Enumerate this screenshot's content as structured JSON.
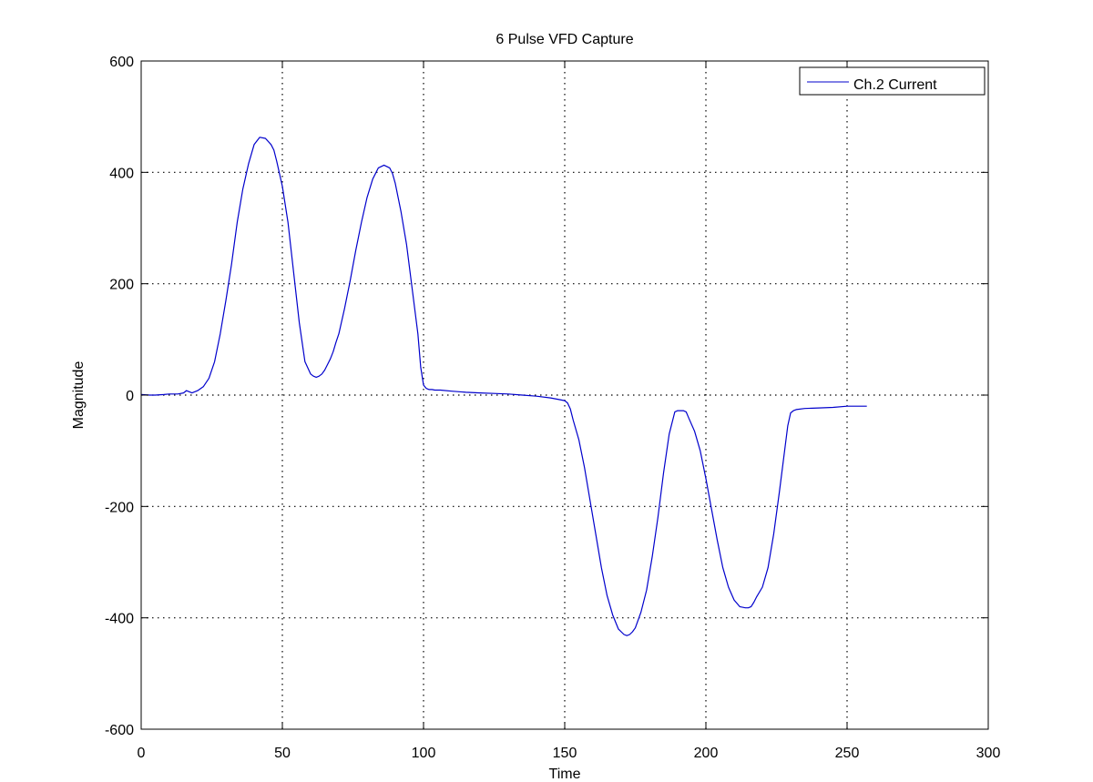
{
  "chart_data": {
    "type": "line",
    "title": "6 Pulse VFD Capture",
    "xlabel": "Time",
    "ylabel": "Magnitude",
    "xlim": [
      0,
      300
    ],
    "ylim": [
      -600,
      600
    ],
    "xticks": [
      0,
      50,
      100,
      150,
      200,
      250,
      300
    ],
    "yticks": [
      -600,
      -400,
      -200,
      0,
      200,
      400,
      600
    ],
    "grid": true,
    "legend_position": "top-right",
    "series": [
      {
        "name": "Ch.2 Current",
        "color": "#0000cc",
        "x": [
          0,
          3,
          5,
          8,
          10,
          13,
          15,
          16,
          17,
          18,
          20,
          22,
          24,
          26,
          28,
          30,
          32,
          34,
          36,
          38,
          40,
          42,
          44,
          46,
          47,
          48,
          50,
          52,
          54,
          56,
          58,
          60,
          61,
          62,
          63,
          64,
          65,
          66,
          67,
          68,
          69,
          70,
          72,
          74,
          76,
          78,
          80,
          82,
          84,
          86,
          88,
          89,
          90,
          92,
          94,
          96,
          98,
          99,
          100,
          101,
          102,
          103,
          104,
          105,
          106,
          110,
          115,
          120,
          125,
          130,
          135,
          140,
          145,
          148,
          150,
          151,
          152,
          153,
          155,
          157,
          159,
          161,
          163,
          165,
          167,
          169,
          171,
          172,
          173,
          174,
          175,
          177,
          179,
          181,
          183,
          185,
          187,
          189,
          190,
          191,
          192,
          193,
          194,
          196,
          198,
          200,
          202,
          204,
          206,
          208,
          210,
          212,
          214,
          215,
          216,
          217,
          218,
          220,
          222,
          224,
          226,
          228,
          229,
          230,
          231,
          232,
          235,
          240,
          245,
          250,
          257
        ],
        "y": [
          1,
          0,
          0,
          1,
          2,
          2,
          4,
          8,
          6,
          4,
          8,
          15,
          30,
          60,
          110,
          170,
          235,
          310,
          370,
          415,
          450,
          463,
          461,
          450,
          440,
          420,
          375,
          310,
          220,
          130,
          60,
          38,
          34,
          32,
          34,
          38,
          45,
          55,
          65,
          78,
          95,
          110,
          155,
          205,
          260,
          310,
          355,
          388,
          408,
          413,
          408,
          398,
          380,
          330,
          270,
          190,
          110,
          50,
          18,
          12,
          10,
          10,
          9,
          9,
          9,
          7,
          5,
          4,
          3,
          2,
          0,
          -2,
          -5,
          -8,
          -10,
          -14,
          -25,
          -45,
          -80,
          -130,
          -190,
          -250,
          -310,
          -360,
          -395,
          -420,
          -430,
          -432,
          -430,
          -425,
          -418,
          -390,
          -350,
          -290,
          -220,
          -140,
          -70,
          -30,
          -28,
          -28,
          -28,
          -30,
          -42,
          -65,
          -100,
          -150,
          -205,
          -260,
          -310,
          -345,
          -368,
          -380,
          -382,
          -382,
          -380,
          -372,
          -362,
          -345,
          -310,
          -250,
          -175,
          -95,
          -55,
          -32,
          -28,
          -26,
          -24,
          -23,
          -22,
          -20,
          -20
        ]
      }
    ]
  }
}
